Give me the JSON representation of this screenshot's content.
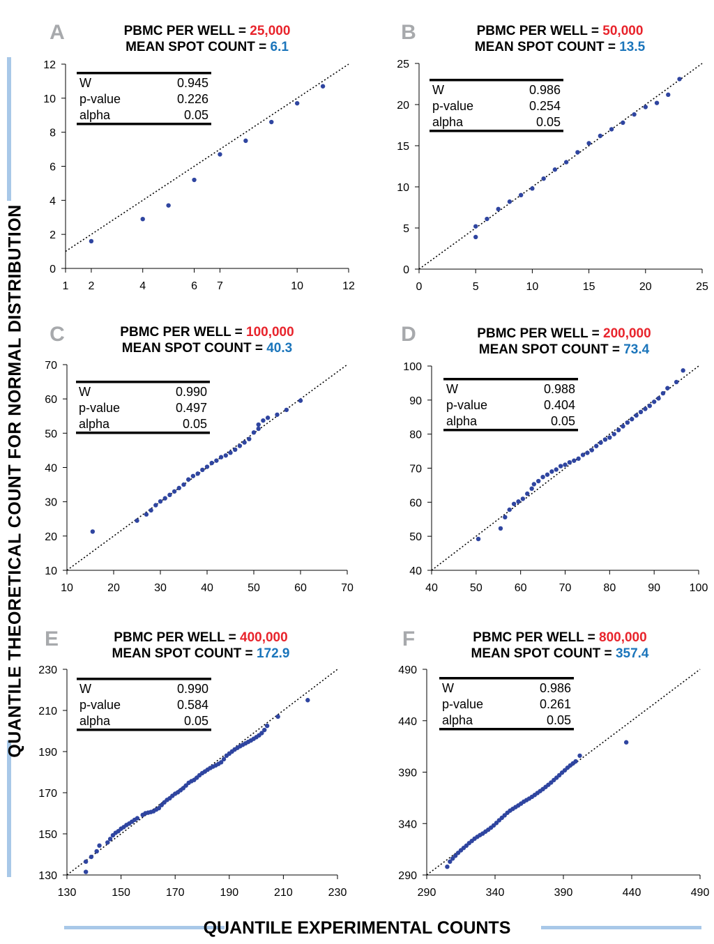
{
  "figure": {
    "y_axis_label": "QUANTILE THEORETICAL COUNT FOR NORMAL DISTRIBUTION",
    "x_axis_label": "QUANTILE EXPERIMENTAL COUNTS"
  },
  "colors": {
    "pbmc_value": "#e8242c",
    "mean_value": "#1b75bb",
    "points": "#2f45a0",
    "axis_bar": "#a8c8e8"
  },
  "chart_data": [
    {
      "type": "scatter",
      "panel": "A",
      "title_pbmc_label": "PBMC PER WELL = ",
      "title_pbmc_value": "25,000",
      "title_mean_label": "MEAN SPOT COUNT = ",
      "title_mean_value": "6.1",
      "xlim": [
        1,
        12
      ],
      "ylim": [
        0,
        12
      ],
      "xticks": [
        1,
        2,
        4,
        6,
        7,
        10,
        12
      ],
      "xtick_labels": [
        "1",
        "2",
        "4",
        "6",
        "7",
        "10",
        "12"
      ],
      "yticks": [
        0,
        2,
        4,
        6,
        8,
        10,
        12
      ],
      "stats": [
        [
          "W",
          "0.945"
        ],
        [
          "p-value",
          "0.226"
        ],
        [
          "alpha",
          "0.05"
        ]
      ],
      "points": [
        [
          2,
          1.6
        ],
        [
          4,
          2.9
        ],
        [
          5,
          3.7
        ],
        [
          6,
          5.2
        ],
        [
          7,
          6.7
        ],
        [
          8,
          7.5
        ],
        [
          9,
          8.6
        ],
        [
          10,
          9.7
        ],
        [
          11,
          10.7
        ]
      ]
    },
    {
      "type": "scatter",
      "panel": "B",
      "title_pbmc_label": "PBMC PER WELL = ",
      "title_pbmc_value": "50,000",
      "title_mean_label": "MEAN SPOT COUNT = ",
      "title_mean_value": "13.5",
      "xlim": [
        0,
        25
      ],
      "ylim": [
        0,
        25
      ],
      "xticks": [
        0,
        5,
        10,
        15,
        20,
        25
      ],
      "xtick_labels": [
        "0",
        "5",
        "10",
        "15",
        "20",
        "25"
      ],
      "yticks": [
        0,
        5,
        10,
        15,
        20,
        25
      ],
      "stats": [
        [
          "W",
          "0.986"
        ],
        [
          "p-value",
          "0.254"
        ],
        [
          "alpha",
          "0.05"
        ]
      ],
      "points": [
        [
          5,
          3.9
        ],
        [
          5,
          5.2
        ],
        [
          6,
          6.1
        ],
        [
          7,
          7.3
        ],
        [
          8,
          8.2
        ],
        [
          9,
          9
        ],
        [
          10,
          9.8
        ],
        [
          11,
          11
        ],
        [
          12,
          12.1
        ],
        [
          13,
          13
        ],
        [
          14,
          14.2
        ],
        [
          15,
          15.3
        ],
        [
          16,
          16.2
        ],
        [
          17,
          17
        ],
        [
          18,
          17.8
        ],
        [
          19,
          18.8
        ],
        [
          20,
          19.7
        ],
        [
          21,
          20.2
        ],
        [
          22,
          21.2
        ],
        [
          23,
          23.1
        ]
      ]
    },
    {
      "type": "scatter",
      "panel": "C",
      "title_pbmc_label": "PBMC PER WELL = ",
      "title_pbmc_value": "100,000",
      "title_mean_label": "MEAN SPOT COUNT = ",
      "title_mean_value": "40.3",
      "xlim": [
        10,
        70
      ],
      "ylim": [
        10,
        70
      ],
      "xticks": [
        10,
        20,
        30,
        40,
        50,
        60,
        70
      ],
      "xtick_labels": [
        "10",
        "20",
        "30",
        "40",
        "50",
        "60",
        "70"
      ],
      "yticks": [
        10,
        20,
        30,
        40,
        50,
        60,
        70
      ],
      "stats": [
        [
          "W",
          "0.990"
        ],
        [
          "p-value",
          "0.497"
        ],
        [
          "alpha",
          "0.05"
        ]
      ],
      "points": [
        [
          15.5,
          21.3
        ],
        [
          25,
          24.5
        ],
        [
          27,
          26.3
        ],
        [
          28,
          27.5
        ],
        [
          29,
          29
        ],
        [
          30,
          30.1
        ],
        [
          31,
          31
        ],
        [
          32,
          32
        ],
        [
          33,
          33
        ],
        [
          34,
          34
        ],
        [
          35,
          35
        ],
        [
          36,
          36.5
        ],
        [
          37,
          37.5
        ],
        [
          38,
          38.2
        ],
        [
          39,
          39.3
        ],
        [
          40,
          40.2
        ],
        [
          41,
          41.3
        ],
        [
          42,
          42
        ],
        [
          43,
          43
        ],
        [
          44,
          43.5
        ],
        [
          45,
          44.3
        ],
        [
          46,
          45.2
        ],
        [
          47,
          46.3
        ],
        [
          48,
          47.3
        ],
        [
          49,
          48.3
        ],
        [
          50,
          50.2
        ],
        [
          51,
          51.3
        ],
        [
          51,
          52.5
        ],
        [
          52,
          53.7
        ],
        [
          53,
          54.5
        ],
        [
          55,
          55.4
        ],
        [
          57,
          56.8
        ],
        [
          60,
          59.5
        ]
      ]
    },
    {
      "type": "scatter",
      "panel": "D",
      "title_pbmc_label": "PBMC PER WELL = ",
      "title_pbmc_value": "200,000",
      "title_mean_label": "MEAN SPOT COUNT = ",
      "title_mean_value": "73.4",
      "xlim": [
        40,
        100
      ],
      "ylim": [
        40,
        100
      ],
      "xticks": [
        40,
        50,
        60,
        70,
        80,
        90,
        100
      ],
      "xtick_labels": [
        "40",
        "50",
        "60",
        "70",
        "80",
        "90",
        "100"
      ],
      "yticks": [
        40,
        50,
        60,
        70,
        80,
        90,
        100
      ],
      "stats": [
        [
          "W",
          "0.988"
        ],
        [
          "p-value",
          "0.404"
        ],
        [
          "alpha",
          "0.05"
        ]
      ],
      "points": [
        [
          50.5,
          49.2
        ],
        [
          55.5,
          52.3
        ],
        [
          56.5,
          55.6
        ],
        [
          57.5,
          57.8
        ],
        [
          58.5,
          59.5
        ],
        [
          59.5,
          60.2
        ],
        [
          60.5,
          61
        ],
        [
          61.5,
          62.5
        ],
        [
          62.5,
          64
        ],
        [
          63,
          65.3
        ],
        [
          64,
          66.2
        ],
        [
          65,
          67.4
        ],
        [
          66,
          68.1
        ],
        [
          67,
          69
        ],
        [
          68,
          69.6
        ],
        [
          69,
          70.6
        ],
        [
          70,
          71
        ],
        [
          71,
          71.7
        ],
        [
          72,
          72.2
        ],
        [
          73,
          72.8
        ],
        [
          74,
          73.9
        ],
        [
          75,
          74.5
        ],
        [
          76,
          75.3
        ],
        [
          77,
          76.5
        ],
        [
          78,
          77.5
        ],
        [
          79,
          78.4
        ],
        [
          80,
          79
        ],
        [
          81,
          80
        ],
        [
          82,
          81.2
        ],
        [
          83,
          82.3
        ],
        [
          84,
          83.4
        ],
        [
          85,
          84.4
        ],
        [
          86,
          85.5
        ],
        [
          87,
          86.5
        ],
        [
          88,
          87.4
        ],
        [
          89,
          88.3
        ],
        [
          90,
          89.5
        ],
        [
          91,
          90.5
        ],
        [
          92,
          92
        ],
        [
          93,
          93.5
        ],
        [
          95,
          95.3
        ],
        [
          96.5,
          98.7
        ]
      ]
    },
    {
      "type": "scatter",
      "panel": "E",
      "title_pbmc_label": "PBMC PER WELL = ",
      "title_pbmc_value": "400,000",
      "title_mean_label": "MEAN SPOT COUNT = ",
      "title_mean_value": "172.9",
      "xlim": [
        130,
        230
      ],
      "ylim": [
        130,
        230
      ],
      "xticks": [
        130,
        150,
        170,
        190,
        210,
        230
      ],
      "xtick_labels": [
        "130",
        "150",
        "170",
        "190",
        "210",
        "230"
      ],
      "yticks": [
        130,
        150,
        170,
        190,
        210,
        230
      ],
      "stats": [
        [
          "W",
          "0.990"
        ],
        [
          "p-value",
          "0.584"
        ],
        [
          "alpha",
          "0.05"
        ]
      ],
      "points": [
        [
          137,
          131.5
        ],
        [
          137,
          136.5
        ],
        [
          139,
          138.8
        ],
        [
          141,
          141.5
        ],
        [
          142,
          144.3
        ],
        [
          145,
          145.8
        ],
        [
          146,
          147.5
        ],
        [
          147,
          149.3
        ],
        [
          148,
          150.5
        ],
        [
          149,
          151.3
        ],
        [
          150,
          152.5
        ],
        [
          151,
          153.3
        ],
        [
          152,
          154.3
        ],
        [
          153,
          155
        ],
        [
          154,
          155.9
        ],
        [
          155,
          156.8
        ],
        [
          156,
          157.6
        ],
        [
          158,
          159.2
        ],
        [
          159,
          160
        ],
        [
          160,
          160.3
        ],
        [
          161,
          160.6
        ],
        [
          162,
          161
        ],
        [
          163,
          161.8
        ],
        [
          164,
          162.5
        ],
        [
          165,
          164
        ],
        [
          166,
          165.3
        ],
        [
          167,
          166.5
        ],
        [
          168,
          167.3
        ],
        [
          169,
          168.5
        ],
        [
          170,
          169.5
        ],
        [
          171,
          170.2
        ],
        [
          172,
          171.2
        ],
        [
          173,
          172.2
        ],
        [
          174,
          173.5
        ],
        [
          175,
          174.8
        ],
        [
          176,
          175.6
        ],
        [
          177,
          176.2
        ],
        [
          178,
          177.3
        ],
        [
          179,
          178.5
        ],
        [
          180,
          179.5
        ],
        [
          181,
          180.3
        ],
        [
          182,
          181.2
        ],
        [
          183,
          182
        ],
        [
          184,
          182.7
        ],
        [
          185,
          183.3
        ],
        [
          186,
          184
        ],
        [
          187,
          184.8
        ],
        [
          188,
          186.3
        ],
        [
          189,
          188
        ],
        [
          190,
          189
        ],
        [
          191,
          190
        ],
        [
          192,
          191
        ],
        [
          193,
          191.8
        ],
        [
          194,
          192.6
        ],
        [
          195,
          193.3
        ],
        [
          196,
          194
        ],
        [
          197,
          194.7
        ],
        [
          198,
          195.4
        ],
        [
          199,
          196.2
        ],
        [
          200,
          197
        ],
        [
          201,
          197.9
        ],
        [
          202,
          199
        ],
        [
          203,
          200.5
        ],
        [
          204,
          202.5
        ],
        [
          208,
          207
        ],
        [
          219,
          215
        ]
      ]
    },
    {
      "type": "scatter",
      "panel": "F",
      "title_pbmc_label": "PBMC PER WELL = ",
      "title_pbmc_value": "800,000",
      "title_mean_label": "MEAN SPOT COUNT = ",
      "title_mean_value": "357.4",
      "xlim": [
        290,
        490
      ],
      "ylim": [
        290,
        490
      ],
      "xticks": [
        290,
        340,
        390,
        440,
        490
      ],
      "xtick_labels": [
        "290",
        "340",
        "390",
        "440",
        "490"
      ],
      "yticks": [
        290,
        340,
        390,
        440,
        490
      ],
      "stats": [
        [
          "W",
          "0.986"
        ],
        [
          "p-value",
          "0.261"
        ],
        [
          "alpha",
          "0.05"
        ]
      ],
      "points": [
        [
          305,
          298
        ],
        [
          307,
          303
        ],
        [
          309,
          306
        ],
        [
          311,
          308.7
        ],
        [
          313,
          311.5
        ],
        [
          315,
          314
        ],
        [
          317,
          316.3
        ],
        [
          319,
          318.5
        ],
        [
          321,
          321
        ],
        [
          323,
          323.1
        ],
        [
          325,
          325.3
        ],
        [
          327,
          327.1
        ],
        [
          329,
          328.8
        ],
        [
          331,
          330.3
        ],
        [
          333,
          332.2
        ],
        [
          335,
          334
        ],
        [
          337,
          336
        ],
        [
          339,
          338.2
        ],
        [
          341,
          340.6
        ],
        [
          343,
          343.2
        ],
        [
          345,
          345.6
        ],
        [
          347,
          348
        ],
        [
          349,
          350.5
        ],
        [
          351,
          352.6
        ],
        [
          353,
          354.3
        ],
        [
          355,
          356
        ],
        [
          357,
          357.6
        ],
        [
          359,
          359.4
        ],
        [
          361,
          361.3
        ],
        [
          363,
          362.8
        ],
        [
          365,
          364.3
        ],
        [
          367,
          366
        ],
        [
          369,
          367.8
        ],
        [
          371,
          369.7
        ],
        [
          373,
          371.6
        ],
        [
          375,
          373.5
        ],
        [
          377,
          375.6
        ],
        [
          379,
          377.7
        ],
        [
          381,
          379.9
        ],
        [
          383,
          382.3
        ],
        [
          385,
          384.6
        ],
        [
          387,
          387
        ],
        [
          389,
          389.5
        ],
        [
          391,
          391.8
        ],
        [
          393,
          394.3
        ],
        [
          395,
          396.5
        ],
        [
          397,
          398.5
        ],
        [
          399,
          400.5
        ],
        [
          402,
          406
        ],
        [
          436,
          419
        ]
      ]
    }
  ]
}
